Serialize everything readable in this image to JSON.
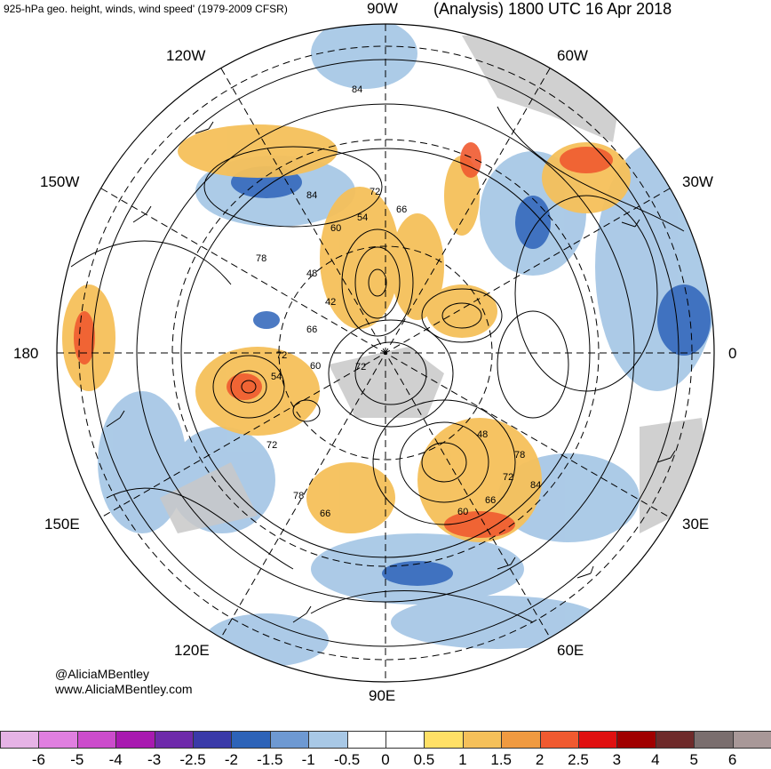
{
  "header": {
    "title_left": "925-hPa geo. height, winds, wind speed' (1979-2009 CFSR)",
    "title_right": "(Analysis) 1800 UTC 16 Apr 2018"
  },
  "map": {
    "projection": "north polar stereographic",
    "longitude_labels": [
      "90W",
      "60W",
      "30W",
      "0",
      "30E",
      "60E",
      "90E",
      "120E",
      "150E",
      "180",
      "150W",
      "120W"
    ],
    "contour_labels": [
      "84",
      "72",
      "54",
      "66",
      "60",
      "78",
      "84",
      "48",
      "42",
      "66",
      "72",
      "60",
      "72",
      "54",
      "72",
      "48",
      "78",
      "72",
      "84",
      "66",
      "60",
      "78",
      "66"
    ],
    "land_color": "#c8c8c8",
    "contour_color": "#000000"
  },
  "credit": {
    "handle": "@AliciaMBentley",
    "website": "www.AliciaMBentley.com"
  },
  "colorbar": {
    "colors": [
      "#e6b3e6",
      "#e07fe0",
      "#cc4ccc",
      "#a81ab0",
      "#6e2aaa",
      "#3a3aa8",
      "#2d63b8",
      "#6e99d2",
      "#a8c8e6",
      "#ffffff",
      "#ffffff",
      "#ffe066",
      "#f5c05a",
      "#f09a40",
      "#f05a30",
      "#e01010",
      "#a00000",
      "#6e2a2a",
      "#7a6e6e",
      "#a89898"
    ],
    "tick_labels": [
      "-6",
      "-5",
      "-4",
      "-3",
      "-2.5",
      "-2",
      "-1.5",
      "-1",
      "-0.5",
      "0",
      "0.5",
      "1",
      "1.5",
      "2",
      "2.5",
      "3",
      "4",
      "5",
      "6"
    ]
  }
}
